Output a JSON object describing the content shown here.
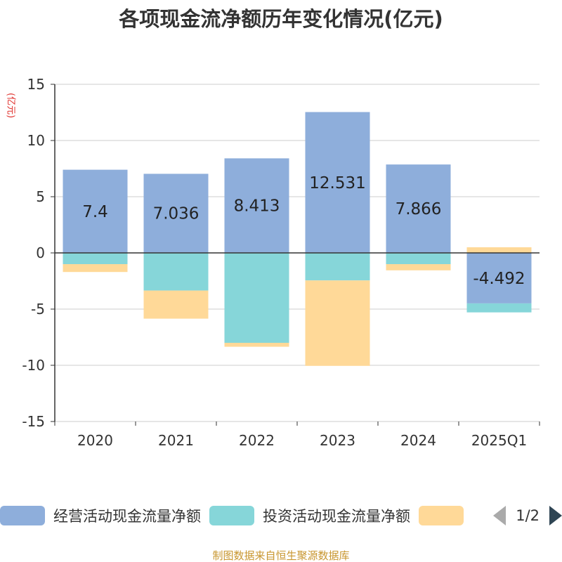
{
  "title": "各项现金流净额历年变化情况(亿元)",
  "source": "制图数据来自恒生聚源数据库",
  "colors": {
    "operating": "#8eaedb",
    "investing": "#86d6d9",
    "financing": "#ffd998",
    "axis": "#333333",
    "grid": "#cccccc",
    "text": "#333333",
    "unit": "#e0312d",
    "source": "#c8962f"
  },
  "legend_pager": {
    "text": "1/2"
  },
  "chart_data": {
    "type": "bar",
    "stacked": true,
    "title": "各项现金流净额历年变化情况(亿元)",
    "ylabel": "(亿元)",
    "xlabel": "",
    "ylim": [
      -15,
      15
    ],
    "yticks": [
      15,
      10,
      5,
      0,
      -5,
      -10,
      -15
    ],
    "ytick_labels": [
      "15",
      "10",
      "5",
      "0",
      "-5",
      "-10",
      "-15"
    ],
    "grid": true,
    "legend_position": "bottom",
    "categories": [
      "2020",
      "2021",
      "2022",
      "2023",
      "2024",
      "2025Q1"
    ],
    "series": [
      {
        "name": "经营活动现金流量净额",
        "key": "operating",
        "values": [
          7.4,
          7.036,
          8.413,
          12.531,
          7.866,
          -4.492
        ],
        "labels": [
          "7.4",
          "7.036",
          "8.413",
          "12.531",
          "7.866",
          "-4.492"
        ]
      },
      {
        "name": "投资活动现金流量净额",
        "key": "investing",
        "values": [
          -1.0,
          -3.35,
          -8.0,
          -2.45,
          -1.0,
          -0.8
        ]
      },
      {
        "name": "",
        "key": "financing",
        "values": [
          -0.7,
          -2.5,
          -0.35,
          -7.6,
          -0.55,
          0.5
        ]
      }
    ]
  }
}
